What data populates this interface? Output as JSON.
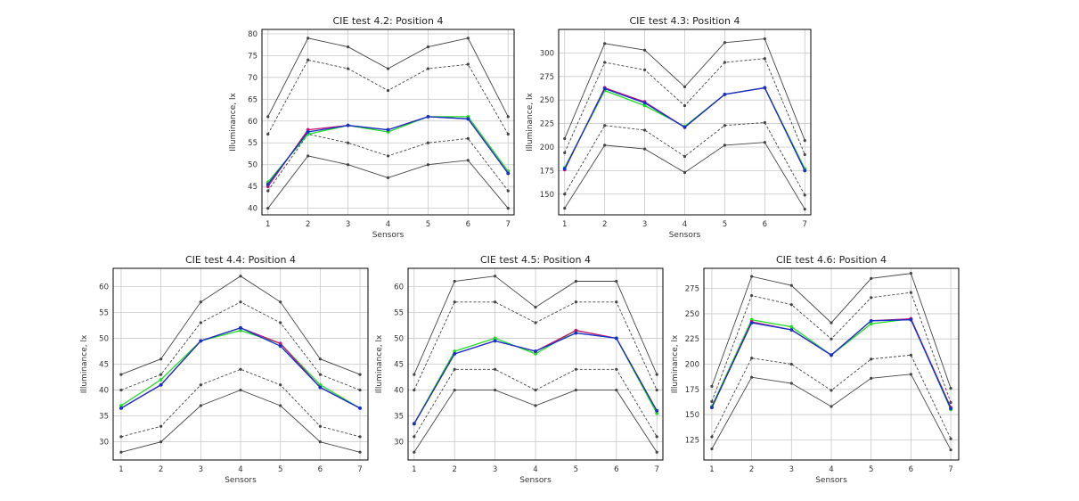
{
  "chart_data": [
    {
      "type": "line",
      "title": "CIE test 4.2: Position 4",
      "xlabel": "Sensors",
      "ylabel": "Illuminance, lx",
      "categories": [
        "1",
        "2",
        "3",
        "4",
        "5",
        "6",
        "7"
      ],
      "xlim": [
        0.85,
        7.15
      ],
      "ylim": [
        38.5,
        81
      ],
      "yticks": [
        "40",
        "45",
        "50",
        "55",
        "60",
        "65",
        "70",
        "75",
        "80"
      ],
      "grid": true,
      "series": [
        {
          "values": [
            61,
            79,
            77,
            72,
            77,
            79,
            61
          ],
          "color": "#444444",
          "style": "solid"
        },
        {
          "values": [
            57,
            74,
            72,
            67,
            72,
            73,
            57
          ],
          "color": "#444444",
          "style": "dashed"
        },
        {
          "values": [
            44,
            57,
            55,
            52,
            55,
            56,
            44
          ],
          "color": "#444444",
          "style": "dashed"
        },
        {
          "values": [
            40,
            52,
            50,
            47,
            50,
            51,
            40
          ],
          "color": "#444444",
          "style": "solid"
        },
        {
          "values": [
            46,
            57,
            59,
            57.5,
            61,
            61,
            48.5
          ],
          "color": "#22dd22",
          "style": "solid"
        },
        {
          "values": [
            45,
            58,
            59,
            58,
            61,
            60.5,
            48
          ],
          "color": "#cc1177",
          "style": "solid"
        },
        {
          "values": [
            45.5,
            57.5,
            59,
            58,
            61,
            60.5,
            48
          ],
          "color": "#1133cc",
          "style": "solid"
        }
      ]
    },
    {
      "type": "line",
      "title": "CIE test 4.3: Position 4",
      "xlabel": "Sensors",
      "ylabel": "Illuminance, lx",
      "categories": [
        "1",
        "2",
        "3",
        "4",
        "5",
        "6",
        "7"
      ],
      "xlim": [
        0.85,
        7.15
      ],
      "ylim": [
        128,
        325
      ],
      "yticks": [
        "150",
        "175",
        "200",
        "225",
        "250",
        "275",
        "300"
      ],
      "grid": true,
      "series": [
        {
          "values": [
            209,
            310,
            303,
            264,
            311,
            315,
            207
          ],
          "color": "#444444",
          "style": "solid"
        },
        {
          "values": [
            194,
            290,
            282,
            244,
            290,
            294,
            192
          ],
          "color": "#444444",
          "style": "dashed"
        },
        {
          "values": [
            150,
            223,
            218,
            190,
            223,
            226,
            149
          ],
          "color": "#444444",
          "style": "dashed"
        },
        {
          "values": [
            135,
            202,
            198,
            173,
            202,
            205,
            134
          ],
          "color": "#444444",
          "style": "solid"
        },
        {
          "values": [
            178,
            260,
            244,
            222,
            256,
            263,
            177
          ],
          "color": "#22dd22",
          "style": "solid"
        },
        {
          "values": [
            176,
            263,
            248,
            221,
            256,
            263,
            175
          ],
          "color": "#cc1177",
          "style": "solid"
        },
        {
          "values": [
            177,
            262,
            247,
            221,
            256,
            263,
            175
          ],
          "color": "#1133cc",
          "style": "solid"
        }
      ]
    },
    {
      "type": "line",
      "title": "CIE test 4.4: Position 4",
      "xlabel": "Sensors",
      "ylabel": "Illuminance, lx",
      "categories": [
        "1",
        "2",
        "3",
        "4",
        "5",
        "6",
        "7"
      ],
      "xlim": [
        0.8,
        7.2
      ],
      "ylim": [
        26.5,
        63.5
      ],
      "yticks": [
        "30",
        "35",
        "40",
        "45",
        "50",
        "55",
        "60"
      ],
      "grid": true,
      "series": [
        {
          "values": [
            43,
            46,
            57,
            62,
            57,
            46,
            43
          ],
          "color": "#444444",
          "style": "solid"
        },
        {
          "values": [
            40,
            43,
            53,
            57,
            53,
            43,
            40
          ],
          "color": "#444444",
          "style": "dashed"
        },
        {
          "values": [
            31,
            33,
            41,
            44,
            41,
            33,
            31
          ],
          "color": "#444444",
          "style": "dashed"
        },
        {
          "values": [
            28,
            30,
            37,
            40,
            37,
            30,
            28
          ],
          "color": "#444444",
          "style": "solid"
        },
        {
          "values": [
            37,
            42,
            49.5,
            51.5,
            49,
            41,
            36.5
          ],
          "color": "#22dd22",
          "style": "solid"
        },
        {
          "values": [
            36.5,
            41,
            49.5,
            52,
            49,
            40.5,
            36.5
          ],
          "color": "#cc1177",
          "style": "solid"
        },
        {
          "values": [
            36.5,
            41,
            49.5,
            52,
            48.5,
            40.5,
            36.5
          ],
          "color": "#1133cc",
          "style": "solid"
        }
      ]
    },
    {
      "type": "line",
      "title": "CIE test 4.5: Position 4",
      "xlabel": "Sensors",
      "ylabel": "Illuminance, lx",
      "categories": [
        "1",
        "2",
        "3",
        "4",
        "5",
        "6",
        "7"
      ],
      "xlim": [
        0.85,
        7.15
      ],
      "ylim": [
        26.5,
        63.5
      ],
      "yticks": [
        "30",
        "35",
        "40",
        "45",
        "50",
        "55",
        "60"
      ],
      "grid": true,
      "series": [
        {
          "values": [
            43,
            61,
            62,
            56,
            61,
            61,
            43
          ],
          "color": "#444444",
          "style": "solid"
        },
        {
          "values": [
            40,
            57,
            57,
            53,
            57,
            57,
            40
          ],
          "color": "#444444",
          "style": "dashed"
        },
        {
          "values": [
            31,
            44,
            44,
            40,
            44,
            44,
            31
          ],
          "color": "#444444",
          "style": "dashed"
        },
        {
          "values": [
            28,
            40,
            40,
            37,
            40,
            40,
            28
          ],
          "color": "#444444",
          "style": "solid"
        },
        {
          "values": [
            33.5,
            47.5,
            50,
            47,
            51.5,
            50,
            35.5
          ],
          "color": "#22dd22",
          "style": "solid"
        },
        {
          "values": [
            33.5,
            47,
            49.5,
            47.5,
            51.5,
            50,
            36
          ],
          "color": "#cc1177",
          "style": "solid"
        },
        {
          "values": [
            33.5,
            47,
            49.5,
            47.5,
            51,
            50,
            36
          ],
          "color": "#1133cc",
          "style": "solid"
        }
      ]
    },
    {
      "type": "line",
      "title": "CIE test 4.6: Position 4",
      "xlabel": "Sensors",
      "ylabel": "Illuminance, lx",
      "categories": [
        "1",
        "2",
        "3",
        "4",
        "5",
        "6",
        "7"
      ],
      "xlim": [
        0.8,
        7.2
      ],
      "ylim": [
        105,
        295
      ],
      "yticks": [
        "125",
        "150",
        "175",
        "200",
        "225",
        "250",
        "275"
      ],
      "grid": true,
      "series": [
        {
          "values": [
            178,
            287,
            278,
            241,
            285,
            290,
            176
          ],
          "color": "#444444",
          "style": "solid"
        },
        {
          "values": [
            163,
            268,
            259,
            225,
            266,
            271,
            162
          ],
          "color": "#444444",
          "style": "dashed"
        },
        {
          "values": [
            128,
            206,
            200,
            174,
            205,
            209,
            126
          ],
          "color": "#444444",
          "style": "dashed"
        },
        {
          "values": [
            116,
            187,
            181,
            158,
            186,
            190,
            115
          ],
          "color": "#444444",
          "style": "solid"
        },
        {
          "values": [
            158,
            244,
            237,
            209,
            240,
            245,
            155
          ],
          "color": "#22dd22",
          "style": "solid"
        },
        {
          "values": [
            157,
            242,
            234,
            209,
            243,
            245,
            157
          ],
          "color": "#cc1177",
          "style": "solid"
        },
        {
          "values": [
            157,
            241,
            234,
            209,
            243,
            244,
            156
          ],
          "color": "#1133cc",
          "style": "solid"
        }
      ]
    }
  ]
}
